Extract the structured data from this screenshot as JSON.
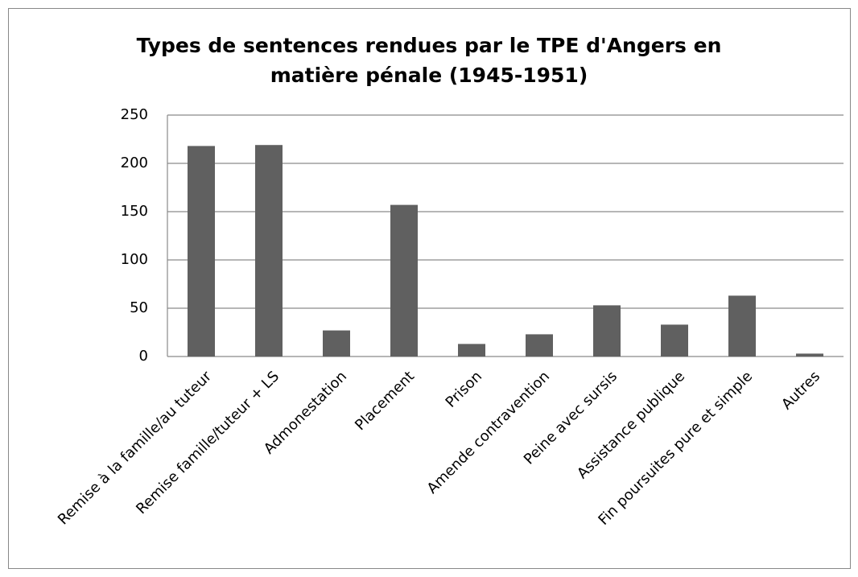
{
  "chart_data": {
    "type": "bar",
    "title": "Types de sentences rendues par le TPE d'Angers en matière pénale (1945-1951)",
    "categories": [
      "Remise à la famille/au tuteur",
      "Remise famille/tuteur + LS",
      "Admonestation",
      "Placement",
      "Prison",
      "Amende contravention",
      "Peine avec sursis",
      "Assistance publique",
      "Fin poursuites pure et simple",
      "Autres"
    ],
    "values": [
      218,
      219,
      27,
      157,
      13,
      23,
      53,
      33,
      63,
      3
    ],
    "color": "#606060",
    "ylim": [
      0,
      250
    ],
    "yticks": [
      0,
      50,
      100,
      150,
      200,
      250
    ],
    "grid": true
  }
}
